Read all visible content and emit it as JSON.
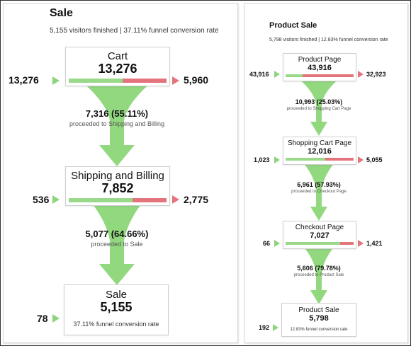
{
  "left": {
    "title": "Sale",
    "subtitle": "5,155 visitors finished | 37.11% funnel conversion rate",
    "steps": [
      {
        "name": "Cart",
        "value": "13,276",
        "entered": "13,276",
        "exited": "5,960",
        "continue_fraction": 0.55
      },
      {
        "name": "Shipping and Billing",
        "value": "7,852",
        "entered": "536",
        "exited": "2,775",
        "continue_fraction": 0.65
      },
      {
        "name": "Sale",
        "value": "5,155",
        "entered": "78",
        "note": "37.11% funnel conversion rate"
      }
    ],
    "flows": [
      {
        "value": "7,316 (55.11%)",
        "note": "proceeded to Shipping and Billing"
      },
      {
        "value": "5,077 (64.66%)",
        "note": "proceeded to Sale"
      }
    ]
  },
  "right": {
    "title": "Product Sale",
    "subtitle": "5,798 visitors finished | 12.83% funnel conversion rate",
    "steps": [
      {
        "name": "Product Page",
        "value": "43,916",
        "entered": "43,916",
        "exited": "32,923",
        "continue_fraction": 0.25
      },
      {
        "name": "Shopping Cart Page",
        "value": "12,016",
        "entered": "1,023",
        "exited": "5,055",
        "continue_fraction": 0.58
      },
      {
        "name": "Checkout Page",
        "value": "7,027",
        "entered": "66",
        "exited": "1,421",
        "continue_fraction": 0.8
      },
      {
        "name": "Product Sale",
        "value": "5,798",
        "entered": "192",
        "note": "12.83% funnel conversion rate"
      }
    ],
    "flows": [
      {
        "value": "10,993 (25.03%)",
        "note": "proceeded to Shopping Cart Page"
      },
      {
        "value": "6,961 (57.93%)",
        "note": "proceeded to Checkout Page"
      },
      {
        "value": "5,606 (79.78%)",
        "note": "proceeded to Product Sale"
      }
    ]
  },
  "colors": {
    "continue": "#9ad98a",
    "exit": "#e4747c",
    "funnel": "#92d87f"
  }
}
